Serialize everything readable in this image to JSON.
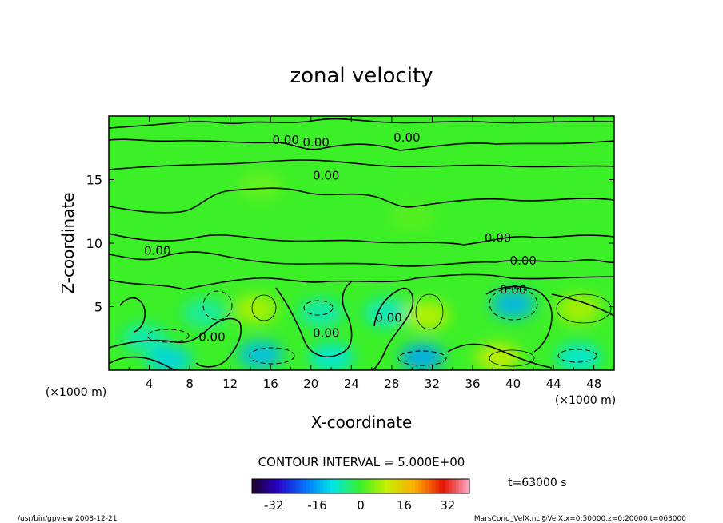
{
  "chart_data": {
    "type": "contour",
    "title": "zonal velocity",
    "xlabel": "X-coordinate",
    "ylabel": "Z-coordinate",
    "x_unit_left": "(×1000 m)",
    "x_unit_right": "(×1000 m)",
    "xlim": [
      0,
      50
    ],
    "ylim": [
      0,
      20
    ],
    "x_ticks": [
      4,
      8,
      12,
      16,
      20,
      24,
      28,
      32,
      36,
      40,
      44,
      48
    ],
    "y_ticks": [
      5,
      10,
      15
    ],
    "contour_interval_text": "CONTOUR INTERVAL = 5.000E+00",
    "time_text": "t=63000 s",
    "colorbar_ticks": [
      -32,
      -16,
      0,
      16,
      32
    ],
    "colorbar_range": [
      -40,
      40
    ],
    "contour_labels": [
      {
        "x": 17.5,
        "z": 17.8,
        "text": "0.00"
      },
      {
        "x": 20.5,
        "z": 17.6,
        "text": "0.00"
      },
      {
        "x": 29.5,
        "z": 18.0,
        "text": "0.00"
      },
      {
        "x": 21.5,
        "z": 15.0,
        "text": "0.00"
      },
      {
        "x": 4.8,
        "z": 9.1,
        "text": "0.00"
      },
      {
        "x": 38.5,
        "z": 10.1,
        "text": "0.00"
      },
      {
        "x": 41.0,
        "z": 8.3,
        "text": "0.00"
      },
      {
        "x": 40.0,
        "z": 6.0,
        "text": "0.00"
      },
      {
        "x": 21.5,
        "z": 2.6,
        "text": "0.00"
      },
      {
        "x": 27.7,
        "z": 3.8,
        "text": "0.00"
      },
      {
        "x": 10.2,
        "z": 2.3,
        "text": "0.00"
      }
    ],
    "features": [
      {
        "x": 3.5,
        "z": 2.5,
        "value": -8
      },
      {
        "x": 6.0,
        "z": 0.8,
        "value": -12
      },
      {
        "x": 9.5,
        "z": 4.5,
        "value": -7
      },
      {
        "x": 15.0,
        "z": 1.2,
        "value": -14
      },
      {
        "x": 14.5,
        "z": 4.8,
        "value": 8
      },
      {
        "x": 21.0,
        "z": 4.5,
        "value": -8
      },
      {
        "x": 22.0,
        "z": 1.0,
        "value": -10
      },
      {
        "x": 27.5,
        "z": 4.5,
        "value": -9
      },
      {
        "x": 31.5,
        "z": 4.3,
        "value": 9
      },
      {
        "x": 31.0,
        "z": 1.0,
        "value": -16
      },
      {
        "x": 40.0,
        "z": 5.2,
        "value": -15
      },
      {
        "x": 38.5,
        "z": 1.0,
        "value": 10
      },
      {
        "x": 46.5,
        "z": 4.8,
        "value": 8
      },
      {
        "x": 46.5,
        "z": 1.0,
        "value": -10
      },
      {
        "x": 15.0,
        "z": 14.5,
        "value": 3
      },
      {
        "x": 30.0,
        "z": 12.0,
        "value": 2
      }
    ]
  },
  "footer": {
    "left": "/usr/bin/gpview   2008-12-21",
    "right": "MarsCond_VelX.nc@VelX,x=0:50000,z=0:20000,t=063000"
  },
  "colors": {
    "frame": "#000000",
    "background_field": "#3ef02c"
  }
}
